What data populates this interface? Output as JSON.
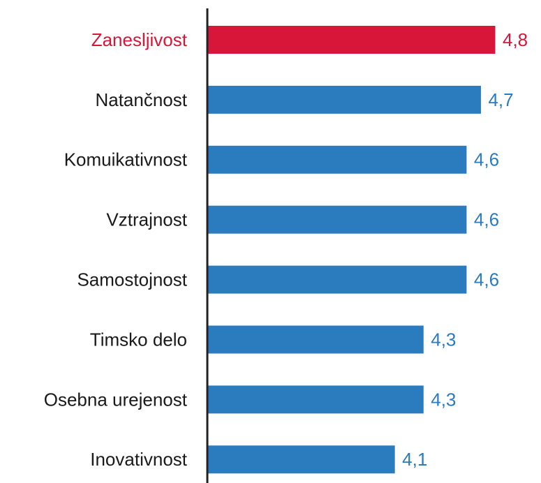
{
  "chart_data": {
    "type": "bar",
    "orientation": "horizontal",
    "categories": [
      "Zanesljivost",
      "Natančnost",
      "Komuikativnost",
      "Vztrajnost",
      "Samostojnost",
      "Timsko delo",
      "Osebna urejenost",
      "Inovativnost"
    ],
    "values": [
      4.8,
      4.7,
      4.6,
      4.6,
      4.6,
      4.3,
      4.3,
      4.1
    ],
    "value_labels": [
      "4,8",
      "4,7",
      "4,6",
      "4,6",
      "4,6",
      "4,3",
      "4,3",
      "4,1"
    ],
    "colors": [
      "#d7163a",
      "#2b7bbf",
      "#2b7bbf",
      "#2b7bbf",
      "#2b7bbf",
      "#2b7bbf",
      "#2b7bbf",
      "#2b7bbf"
    ],
    "xlim": [
      2.8,
      4.8
    ]
  }
}
